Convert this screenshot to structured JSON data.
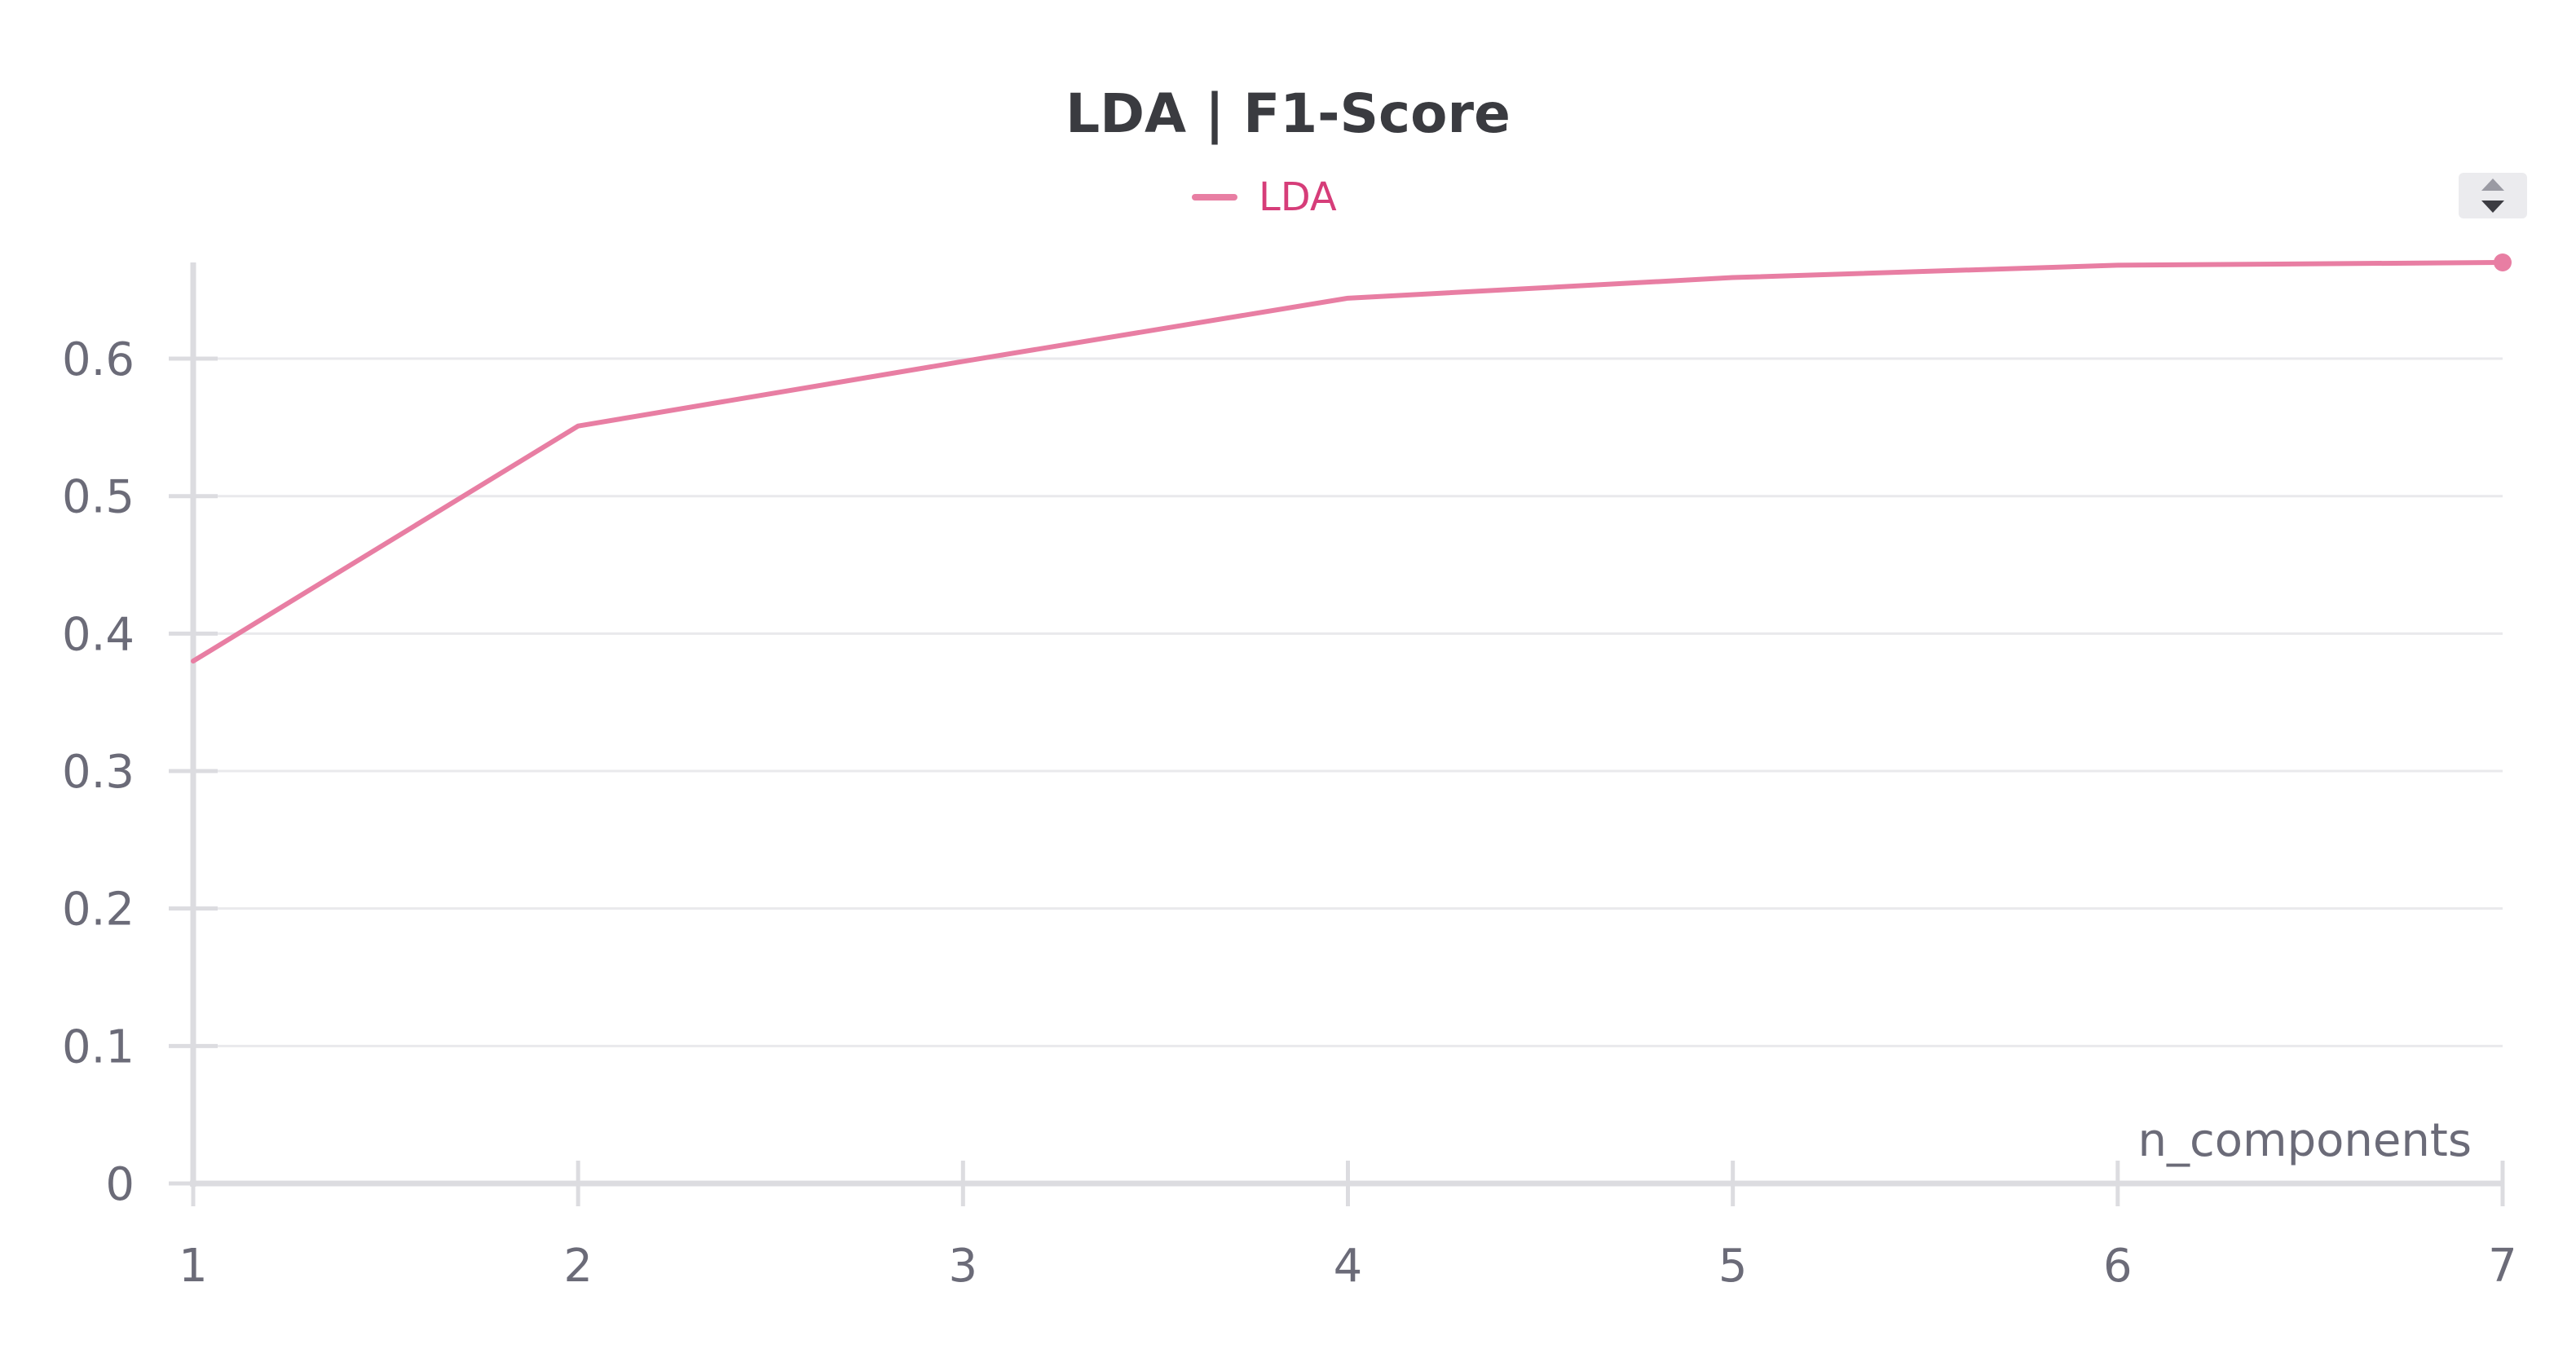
{
  "chart_data": {
    "type": "line",
    "title": "LDA | F1-Score",
    "xlabel": "n_components",
    "ylabel": "",
    "x": [
      1,
      2,
      3,
      4,
      5,
      6,
      7
    ],
    "xlim": [
      1,
      7
    ],
    "ylim": [
      0,
      0.67
    ],
    "yticks": [
      0,
      0.1,
      0.2,
      0.3,
      0.4,
      0.5,
      0.6
    ],
    "ytick_labels": [
      "0",
      "0.1",
      "0.2",
      "0.3",
      "0.4",
      "0.5",
      "0.6"
    ],
    "xtick_labels": [
      "1",
      "2",
      "3",
      "4",
      "5",
      "6",
      "7"
    ],
    "grid": true,
    "legend_position": "top-center",
    "series": [
      {
        "name": "LDA",
        "color": "#e87ea3",
        "values": [
          0.38,
          0.551,
          0.598,
          0.644,
          0.659,
          0.668,
          0.67
        ]
      }
    ]
  },
  "ui": {
    "legend_text_color": "#d63d79",
    "scroll_control_icon": "sort-arrows-icon"
  }
}
